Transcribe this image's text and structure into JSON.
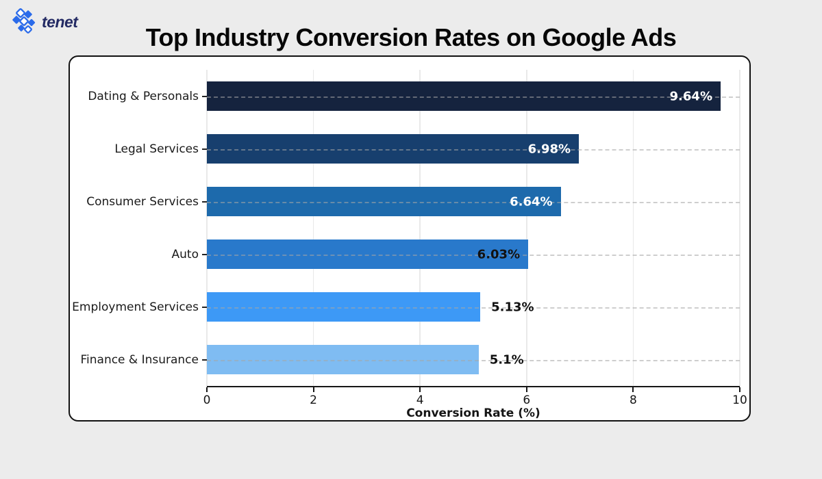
{
  "page": {
    "background": "#ececec"
  },
  "logo": {
    "text": "tenet",
    "text_color": "#232a63",
    "icon_color": "#2b6bea"
  },
  "title": {
    "text": "Top Industry Conversion Rates on Google Ads",
    "color": "#070707"
  },
  "chart_data": {
    "type": "bar",
    "orientation": "horizontal",
    "title": "Top Industry Conversion Rates on Google Ads",
    "categories": [
      "Dating & Personals",
      "Legal Services",
      "Consumer Services",
      "Auto",
      "Employment Services",
      "Finance & Insurance"
    ],
    "values": [
      9.64,
      6.98,
      6.64,
      6.03,
      5.13,
      5.1
    ],
    "value_labels": [
      "9.64%",
      "6.98%",
      "6.64%",
      "6.03%",
      "5.13%",
      "5.1%"
    ],
    "bar_colors": [
      "#15233e",
      "#173f6e",
      "#1d6aac",
      "#2979cb",
      "#3d99f6",
      "#7fbcf2"
    ],
    "value_label_colors": [
      "#ffffff",
      "#ffffff",
      "#ffffff",
      "#111111",
      "#111111",
      "#111111"
    ],
    "value_label_inside": [
      true,
      true,
      true,
      true,
      false,
      false
    ],
    "xlabel": "Conversion Rate (%)",
    "xlim": [
      0,
      10
    ],
    "xticks": [
      0,
      2,
      4,
      6,
      8,
      10
    ],
    "grid": {
      "vertical": "solid",
      "horizontal": "dashed",
      "legend": "none"
    }
  }
}
